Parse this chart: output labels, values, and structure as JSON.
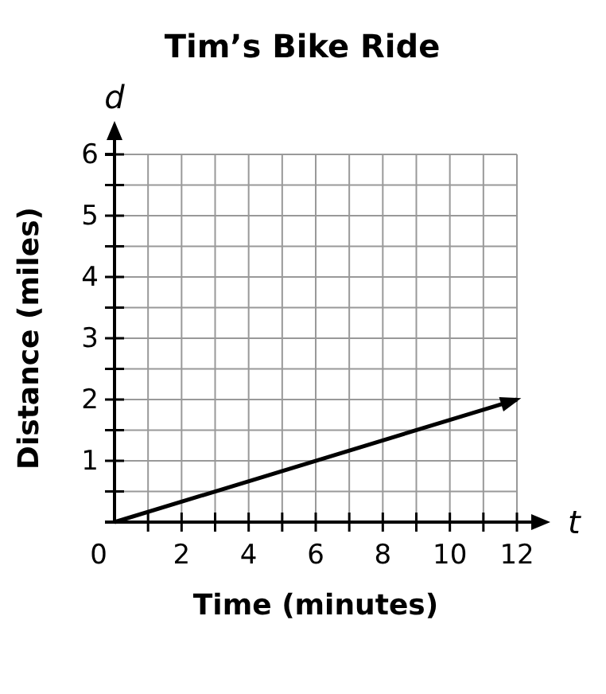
{
  "chart_data": {
    "type": "line",
    "title": "Tim’s Bike Ride",
    "xlabel": "Time (minutes)",
    "ylabel": "Distance (miles)",
    "annotations": [
      "t",
      "d"
    ],
    "x": [
      0,
      12
    ],
    "series": [
      {
        "color": "#000000",
        "values": [
          0,
          2
        ]
      }
    ],
    "xlim": [
      0,
      12
    ],
    "ylim": [
      0,
      6
    ],
    "xticks": [
      0,
      {
        "value": 1,
        "label": null
      },
      2,
      {
        "value": 3,
        "label": null
      },
      4,
      {
        "value": 5,
        "label": null
      },
      6,
      {
        "value": 7,
        "label": null
      },
      8,
      {
        "value": 9,
        "label": null
      },
      10,
      {
        "value": 11,
        "label": null
      },
      12
    ],
    "yticks": [
      {
        "value": 0.5,
        "label": null
      },
      1,
      {
        "value": 1.5,
        "label": null
      },
      2,
      {
        "value": 2.5,
        "label": null
      },
      3,
      {
        "value": 3.5,
        "label": null
      },
      4,
      {
        "value": 4.5,
        "label": null
      },
      5,
      {
        "value": 5.5,
        "label": null
      },
      6
    ],
    "grid": true,
    "marker": "none",
    "line_style": "solid"
  }
}
